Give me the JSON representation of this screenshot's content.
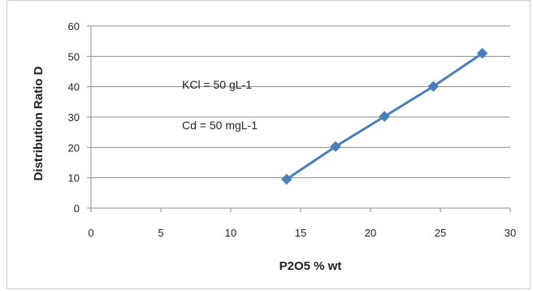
{
  "chart_data": {
    "type": "scatter",
    "title": "",
    "xlabel": "P2O5 % wt",
    "ylabel": "Distribution Ratio D",
    "xlim": [
      0,
      30
    ],
    "ylim": [
      0,
      60
    ],
    "xticks": [
      0,
      5,
      10,
      15,
      20,
      25,
      30
    ],
    "yticks": [
      0,
      10,
      20,
      30,
      40,
      50,
      60
    ],
    "grid": "horizontal",
    "legend": "none",
    "series": [
      {
        "x": [
          14,
          17.5,
          21,
          24.5,
          28
        ],
        "y": [
          9.5,
          20.3,
          30.2,
          40.1,
          51
        ],
        "color": "#4a7ebb",
        "marker": "diamond",
        "line": "straight"
      }
    ],
    "annotations": [
      {
        "text": "KCl = 50 gL-1"
      },
      {
        "text": "Cd = 50 mgL-1"
      }
    ]
  }
}
